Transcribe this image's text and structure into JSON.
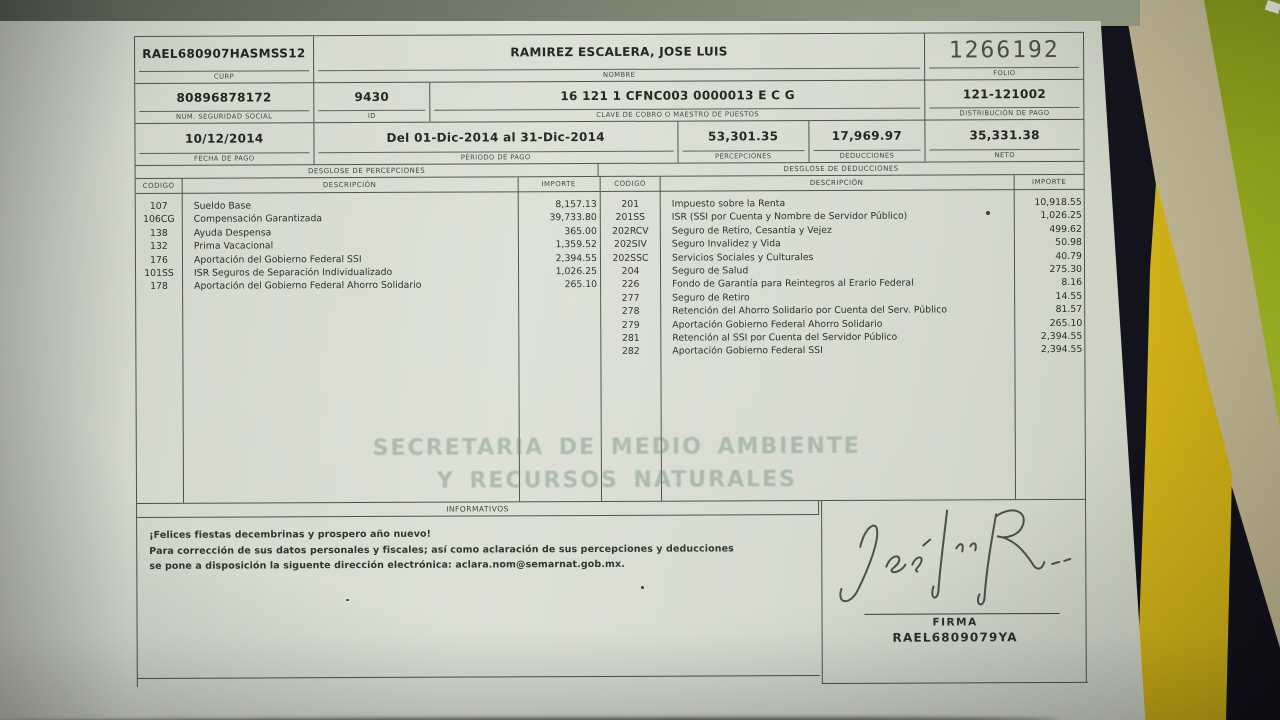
{
  "palette": {
    "paper": "#d7dccf",
    "ink": "#2b2f28",
    "grid_line": "#4d5248",
    "desk_dark": "#1b1c26",
    "folder_green": "#a5bb24",
    "folder_yellow": "#e3c51f",
    "paper_stack_beige": "#cdc3a0"
  },
  "header": {
    "curp": {
      "value": "RAEL680907HASMSS12",
      "label": "CURP"
    },
    "nombre": {
      "value": "RAMIREZ ESCALERA, JOSE LUIS",
      "label": "NOMBRE"
    },
    "folio": {
      "value": "1266192",
      "label": "FOLIO"
    },
    "nss": {
      "value": "80896878172",
      "label": "NUM. SEGURIDAD SOCIAL"
    },
    "id": {
      "value": "9430",
      "label": "ID"
    },
    "clave": {
      "value": "16 121 1 CFNC003 0000013 E C G",
      "label": "CLAVE DE COBRO O MAESTRO DE PUESTOS"
    },
    "distribucion": {
      "value": "121-121002",
      "label": "DISTRIBUCIÓN DE PAGO"
    },
    "fecha": {
      "value": "10/12/2014",
      "label": "FECHA DE PAGO"
    },
    "periodo": {
      "value": "Del 01-Dic-2014 al 31-Dic-2014",
      "label": "PERIODO DE PAGO"
    },
    "percepciones_total": {
      "value": "53,301.35",
      "label": "PERCEPCIONES"
    },
    "deducciones_total": {
      "value": "17,969.97",
      "label": "DEDUCCIONES"
    },
    "neto": {
      "value": "35,331.38",
      "label": "NETO"
    }
  },
  "percepciones": {
    "title": "DESGLOSE DE PERCEPCIONES",
    "headers": [
      "CODIGO",
      "DESCRIPCIÓN",
      "IMPORTE"
    ],
    "rows": [
      {
        "code": "107",
        "desc": "Sueldo Base",
        "amount": "8,157.13"
      },
      {
        "code": "106CG",
        "desc": "Compensación Garantizada",
        "amount": "39,733.80"
      },
      {
        "code": "138",
        "desc": "Ayuda Despensa",
        "amount": "365.00"
      },
      {
        "code": "132",
        "desc": "Prima Vacacional",
        "amount": "1,359.52"
      },
      {
        "code": "176",
        "desc": "Aportación del Gobierno Federal SSI",
        "amount": "2,394.55"
      },
      {
        "code": "101SS",
        "desc": "ISR Seguros de Separación Individualizado",
        "amount": "1,026.25"
      },
      {
        "code": "178",
        "desc": "Aportación del Gobierno Federal Ahorro Solidario",
        "amount": "265.10"
      }
    ]
  },
  "deducciones": {
    "title": "DESGLOSE DE DEDUCCIONES",
    "headers": [
      "CODIGO",
      "DESCRIPCIÓN",
      "IMPORTE"
    ],
    "rows": [
      {
        "code": "201",
        "desc": "Impuesto sobre la Renta",
        "amount": "10,918.55"
      },
      {
        "code": "201SS",
        "desc": "ISR (SSI por Cuenta y Nombre de Servidor Público)",
        "amount": "1,026.25"
      },
      {
        "code": "202RCV",
        "desc": "Seguro de Retiro, Cesantía y Vejez",
        "amount": "499.62"
      },
      {
        "code": "202SIV",
        "desc": "Seguro Invalidez y Vida",
        "amount": "50.98"
      },
      {
        "code": "202SSC",
        "desc": "Servicios Sociales y Culturales",
        "amount": "40.79"
      },
      {
        "code": "204",
        "desc": "Seguro de Salud",
        "amount": "275.30"
      },
      {
        "code": "226",
        "desc": "Fondo de Garantía para Reintegros al Erario Federal",
        "amount": "8.16"
      },
      {
        "code": "277",
        "desc": "Seguro de Retiro",
        "amount": "14.55"
      },
      {
        "code": "278",
        "desc": "Retención del Ahorro Solidario por Cuenta del Serv. Público",
        "amount": "81.57"
      },
      {
        "code": "279",
        "desc": "Aportación Gobierno Federal Ahorro Solidario",
        "amount": "265.10"
      },
      {
        "code": "281",
        "desc": "Retención al SSI por Cuenta del Servidor Público",
        "amount": "2,394.55"
      },
      {
        "code": "282",
        "desc": "Aportación Gobierno Federal SSI",
        "amount": "2,394.55"
      }
    ]
  },
  "watermark": {
    "line1": "SECRETARIA DE MEDIO AMBIENTE",
    "line2": "Y RECURSOS NATURALES"
  },
  "informativos": {
    "title": "INFORMATIVOS",
    "lines": [
      "¡Felices fiestas decembrinas y prospero año nuevo!",
      "Para corrección de sus datos personales y fiscales; así como aclaración de sus percepciones y deducciones",
      "se pone a disposición la siguente dirección electrónica: aclara.nom@semarnat.gob.mx."
    ]
  },
  "firma": {
    "label": "FIRMA",
    "code": "RAEL6809079YA"
  }
}
